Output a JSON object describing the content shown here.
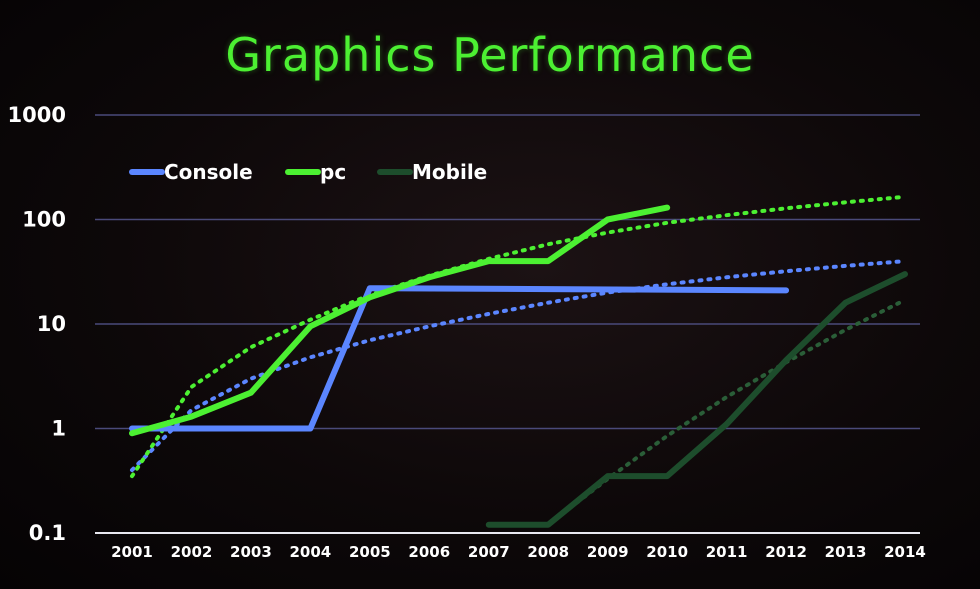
{
  "chart_data": {
    "type": "line",
    "title": "Graphics Performance",
    "xlabel": "",
    "ylabel": "",
    "yscale": "log",
    "ylim": [
      0.1,
      1000
    ],
    "y_tick_labels": [
      "1000",
      "100",
      "10",
      "1",
      "0.1"
    ],
    "categories": [
      "2001",
      "2002",
      "2003",
      "2004",
      "2005",
      "2006",
      "2007",
      "2008",
      "2009",
      "2010",
      "2011",
      "2012",
      "2013",
      "2014"
    ],
    "grid": true,
    "legend_position": "top-left",
    "series": [
      {
        "name": "Console",
        "color": "#5b86ff",
        "style": "solid",
        "x": [
          2001,
          2004,
          2005,
          2012
        ],
        "values": [
          1,
          1,
          22,
          21
        ]
      },
      {
        "name": "pc",
        "color": "#4cf032",
        "style": "solid",
        "x": [
          2001,
          2002,
          2003,
          2004,
          2005,
          2006,
          2007,
          2008,
          2009,
          2010
        ],
        "values": [
          0.9,
          1.3,
          2.2,
          9.5,
          18,
          28,
          40,
          40,
          100,
          130
        ]
      },
      {
        "name": "Mobile",
        "color": "#1d4d2c",
        "style": "solid",
        "x": [
          2007,
          2008,
          2009,
          2010,
          2011,
          2012,
          2013,
          2014
        ],
        "values": [
          0.12,
          0.12,
          0.35,
          0.35,
          1.1,
          4.5,
          16,
          30
        ]
      }
    ],
    "trendlines": [
      {
        "color": "#5b86ff",
        "style": "dotted",
        "x": [
          2001,
          2002,
          2003,
          2004,
          2005,
          2006,
          2007,
          2008,
          2009,
          2010,
          2011,
          2012,
          2013,
          2014
        ],
        "values": [
          0.4,
          1.5,
          3.0,
          4.8,
          7.0,
          9.5,
          12.5,
          16,
          20,
          24,
          28,
          32,
          36,
          40
        ]
      },
      {
        "color": "#4cf032",
        "style": "dotted",
        "x": [
          2001,
          2002,
          2003,
          2004,
          2005,
          2006,
          2007,
          2008,
          2009,
          2010,
          2011,
          2012,
          2013,
          2014
        ],
        "values": [
          0.35,
          2.5,
          6.0,
          11,
          19,
          29,
          42,
          58,
          75,
          93,
          110,
          128,
          146,
          165
        ]
      },
      {
        "color": "#2a5e38",
        "style": "dotted",
        "x": [
          2008,
          2009,
          2010,
          2011,
          2012,
          2013,
          2014
        ],
        "values": [
          0.12,
          0.33,
          0.85,
          2.0,
          4.3,
          8.8,
          17
        ]
      }
    ]
  }
}
